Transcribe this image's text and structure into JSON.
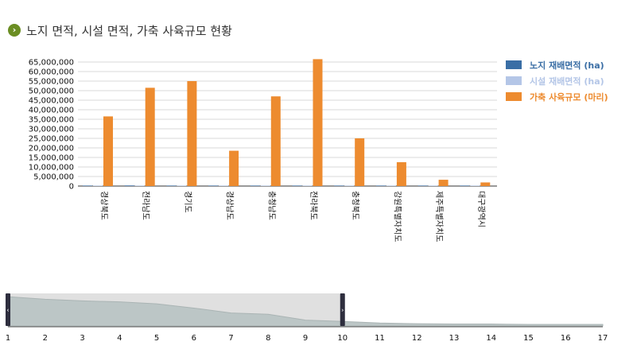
{
  "page": {
    "title": "노지 면적, 시설 면적, 가축 사육규모 현황",
    "title_icon": "chevron-right-icon"
  },
  "colors": {
    "open_field": "#3a6ea5",
    "facility": "#b4c6e7",
    "livestock": "#ed8b2f",
    "grid": "#d9d9d9",
    "navigator_area": "#bcc6c6",
    "navigator_mask": "#e0e0e0",
    "navigator_handle": "#2e2e3e"
  },
  "chart_data": {
    "type": "bar",
    "title": "노지 면적, 시설 면적, 가축 사육규모 현황",
    "categories": [
      "경상북도",
      "전라남도",
      "경기도",
      "경상남도",
      "충청남도",
      "전라북도",
      "충청북도",
      "강원특별자치도",
      "제주특별자치도",
      "대구광역시"
    ],
    "series": [
      {
        "name": "노지 재배면적 (ha)",
        "values": [
          250000,
          300000,
          100000,
          220000,
          180000,
          250000,
          120000,
          110000,
          40000,
          10000
        ]
      },
      {
        "name": "시설 재배면적 (ha)",
        "values": [
          20000,
          25000,
          30000,
          28000,
          26000,
          20000,
          12000,
          5000,
          5000,
          3000
        ]
      },
      {
        "name": "가축 사육규모 (마리)",
        "values": [
          36500000,
          51500000,
          55000000,
          18500000,
          47000000,
          66500000,
          25000000,
          12500000,
          3300000,
          1900000
        ]
      }
    ],
    "y_ticks": [
      "0",
      "5,000,000",
      "10,000,000",
      "15,000,000",
      "20,000,000",
      "25,000,000",
      "30,000,000",
      "35,000,000",
      "40,000,000",
      "45,000,000",
      "50,000,000",
      "55,000,000",
      "60,000,000",
      "65,000,000"
    ],
    "ylim": [
      0,
      65000000
    ],
    "grid": true,
    "legend_position": "right-top",
    "navigator": {
      "x_ticks": [
        "1",
        "2",
        "3",
        "4",
        "5",
        "6",
        "7",
        "8",
        "9",
        "10",
        "11",
        "12",
        "13",
        "14",
        "15",
        "16",
        "17"
      ],
      "selected_range": [
        1,
        10
      ],
      "profile": [
        0.9,
        0.82,
        0.77,
        0.74,
        0.68,
        0.55,
        0.4,
        0.36,
        0.18,
        0.14,
        0.09,
        0.07,
        0.06,
        0.06,
        0.05,
        0.05,
        0.05
      ]
    }
  }
}
